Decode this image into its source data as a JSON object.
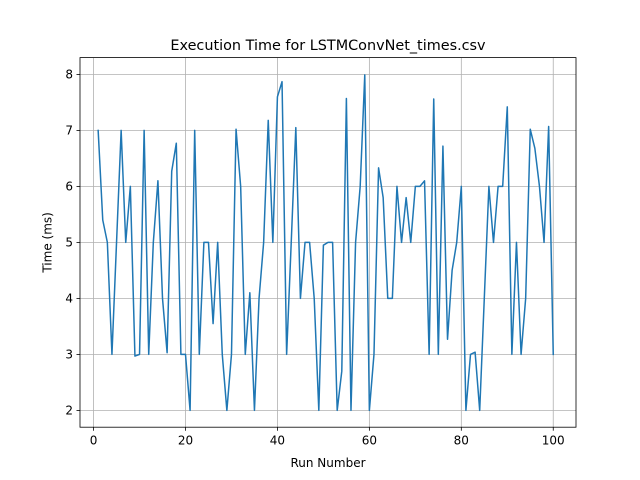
{
  "chart_data": {
    "type": "line",
    "title": "Execution Time for LSTMConvNet_times.csv",
    "xlabel": "Run Number",
    "ylabel": "Time (ms)",
    "xlim": [
      -2.95,
      104.95
    ],
    "ylim": [
      1.7,
      8.3
    ],
    "xticks": [
      0,
      20,
      40,
      60,
      80,
      100
    ],
    "yticks": [
      2,
      3,
      4,
      5,
      6,
      7,
      8
    ],
    "xtick_labels": [
      "0",
      "20",
      "40",
      "60",
      "80",
      "100"
    ],
    "ytick_labels": [
      "2",
      "3",
      "4",
      "5",
      "6",
      "7",
      "8"
    ],
    "grid": true,
    "legend": "none",
    "series": [
      {
        "color": "#1f77b4",
        "x": [
          1,
          2,
          3,
          4,
          5,
          6,
          7,
          8,
          9,
          10,
          11,
          12,
          13,
          14,
          15,
          16,
          17,
          18,
          19,
          20,
          21,
          22,
          23,
          24,
          25,
          26,
          27,
          28,
          29,
          30,
          31,
          32,
          33,
          34,
          35,
          36,
          37,
          38,
          39,
          40,
          41,
          42,
          43,
          44,
          45,
          46,
          47,
          48,
          49,
          50,
          51,
          52,
          53,
          54,
          55,
          56,
          57,
          58,
          59,
          60,
          61,
          62,
          63,
          64,
          65,
          66,
          67,
          68,
          69,
          70,
          71,
          72,
          73,
          74,
          75,
          76,
          77,
          78,
          79,
          80,
          81,
          82,
          83,
          84,
          85,
          86,
          87,
          88,
          89,
          90,
          91,
          92,
          93,
          94,
          95,
          96,
          97,
          98,
          99,
          100
        ],
        "y": [
          7.0,
          5.4,
          5.0,
          3.0,
          5.0,
          7.0,
          5.0,
          6.0,
          2.97,
          3.0,
          7.0,
          3.0,
          5.0,
          6.1,
          4.0,
          3.03,
          6.27,
          6.77,
          3.0,
          3.0,
          2.0,
          7.0,
          3.0,
          5.0,
          5.0,
          3.55,
          5.0,
          3.0,
          2.0,
          3.0,
          7.02,
          6.0,
          3.0,
          4.1,
          2.0,
          4.0,
          5.0,
          7.18,
          5.0,
          7.6,
          7.87,
          3.0,
          5.0,
          7.05,
          4.0,
          5.0,
          5.0,
          4.0,
          2.0,
          4.95,
          5.0,
          5.0,
          2.0,
          2.7,
          7.57,
          2.0,
          5.0,
          6.0,
          7.99,
          2.0,
          3.0,
          6.33,
          5.8,
          4.0,
          4.0,
          6.0,
          5.0,
          5.8,
          5.0,
          6.0,
          6.0,
          6.1,
          3.0,
          7.56,
          3.0,
          6.72,
          3.27,
          4.5,
          5.0,
          6.0,
          2.0,
          3.0,
          3.04,
          2.0,
          4.0,
          6.0,
          5.0,
          6.0,
          6.0,
          7.42,
          3.0,
          5.0,
          3.0,
          4.0,
          7.02,
          6.68,
          6.0,
          5.0,
          7.07,
          3.0
        ]
      }
    ]
  }
}
